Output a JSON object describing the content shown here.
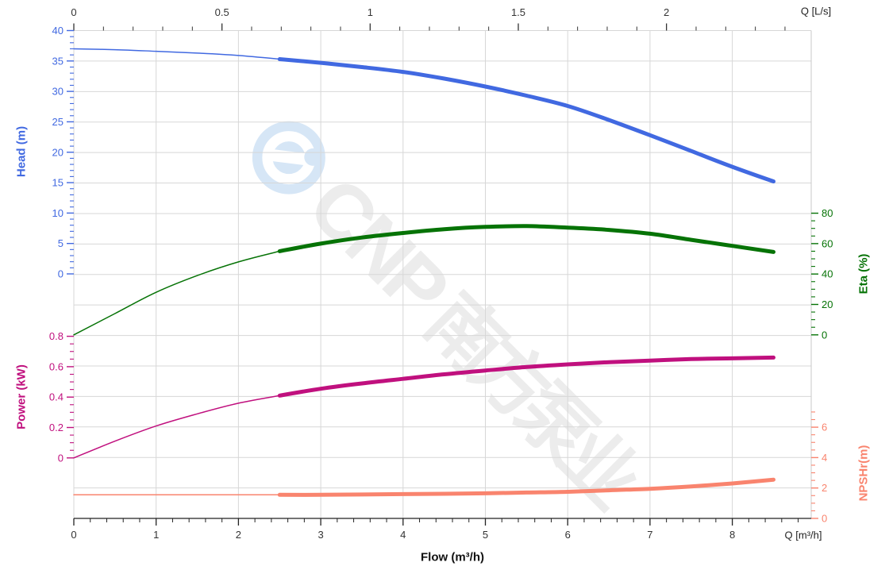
{
  "watermark": {
    "brand_latin": "CNP",
    "brand_cjk": "南方泵业",
    "logo_color": "#d6e6f6"
  },
  "chart_data": {
    "type": "line",
    "title": "",
    "x_bottom": {
      "axis_title": "Flow (m³/h)",
      "unit_label": "Q [m³/h]",
      "ticks": [
        0,
        1,
        2,
        3,
        4,
        5,
        6,
        7,
        8
      ],
      "minor_step": 0.2,
      "range": [
        0,
        8.96
      ],
      "color": "#333333"
    },
    "x_top": {
      "unit_label": "Q [L/s]",
      "ticks": [
        0,
        0.5,
        1,
        1.5,
        2
      ],
      "minor_step": 0.1,
      "range": [
        0,
        2.489
      ],
      "color": "#333333"
    },
    "y_axes": [
      {
        "id": "head",
        "title": "Head (m)",
        "side": "left",
        "color": "#4169E1",
        "ticks": [
          0,
          5,
          10,
          15,
          20,
          25,
          30,
          35,
          40
        ],
        "minor_step": 1,
        "minor_max": 40,
        "range": [
          0,
          40
        ]
      },
      {
        "id": "eta",
        "title": "Eta (%)",
        "side": "right",
        "color": "#067306",
        "ticks": [
          0,
          20,
          40,
          60,
          80
        ],
        "minor_step": 5,
        "minor_max": 80,
        "range": [
          0,
          80
        ]
      },
      {
        "id": "power",
        "title": "Power (kW)",
        "side": "left",
        "color": "#C0107E",
        "ticks": [
          0,
          0.2,
          0.4,
          0.6,
          0.8
        ],
        "minor_step": 0.05,
        "minor_max": 0.8,
        "range": [
          0,
          0.8
        ]
      },
      {
        "id": "npshr",
        "title": "NPSHr(m)",
        "side": "right",
        "color": "#F9846E",
        "ticks": [
          0,
          2,
          4,
          6
        ],
        "minor_step": 0.5,
        "minor_max": 7,
        "range": [
          0,
          7
        ]
      }
    ],
    "grid": true,
    "legend": "none",
    "duty_range_note": "curves drawn thin from 0 to 2.5 m³/h, thick (preferred duty range) from 2.5 to 8.5 m³/h",
    "series": [
      {
        "name": "Head",
        "axis": "head",
        "color": "#4169E1",
        "duty_start": 2.5,
        "points": [
          [
            0,
            37.0
          ],
          [
            0.5,
            36.85
          ],
          [
            1,
            36.6
          ],
          [
            1.5,
            36.3
          ],
          [
            2,
            35.9
          ],
          [
            2.5,
            35.3
          ],
          [
            3,
            34.7
          ],
          [
            3.5,
            34.0
          ],
          [
            4,
            33.2
          ],
          [
            4.5,
            32.1
          ],
          [
            5,
            30.8
          ],
          [
            5.5,
            29.3
          ],
          [
            6,
            27.6
          ],
          [
            6.5,
            25.3
          ],
          [
            7,
            22.8
          ],
          [
            7.5,
            20.2
          ],
          [
            8,
            17.6
          ],
          [
            8.5,
            15.2
          ]
        ]
      },
      {
        "name": "Eta",
        "axis": "eta",
        "color": "#067306",
        "duty_start": 2.5,
        "points": [
          [
            0,
            0
          ],
          [
            0.5,
            14
          ],
          [
            1,
            28
          ],
          [
            1.5,
            39
          ],
          [
            2,
            48
          ],
          [
            2.5,
            55
          ],
          [
            3,
            60
          ],
          [
            3.5,
            64
          ],
          [
            4,
            67
          ],
          [
            4.5,
            69.5
          ],
          [
            5,
            71
          ],
          [
            5.5,
            71.5
          ],
          [
            6,
            70.5
          ],
          [
            6.5,
            69
          ],
          [
            7,
            66.5
          ],
          [
            7.5,
            62.5
          ],
          [
            8,
            58.5
          ],
          [
            8.5,
            54.5
          ]
        ]
      },
      {
        "name": "Power",
        "axis": "power",
        "color": "#C0107E",
        "duty_start": 2.5,
        "points": [
          [
            0,
            0.0
          ],
          [
            0.5,
            0.11
          ],
          [
            1,
            0.21
          ],
          [
            1.5,
            0.29
          ],
          [
            2,
            0.36
          ],
          [
            2.5,
            0.41
          ],
          [
            3,
            0.455
          ],
          [
            3.5,
            0.49
          ],
          [
            4,
            0.52
          ],
          [
            4.5,
            0.55
          ],
          [
            5,
            0.575
          ],
          [
            5.5,
            0.598
          ],
          [
            6,
            0.615
          ],
          [
            6.5,
            0.63
          ],
          [
            7,
            0.64
          ],
          [
            7.5,
            0.65
          ],
          [
            8,
            0.655
          ],
          [
            8.5,
            0.66
          ]
        ]
      },
      {
        "name": "NPSHr",
        "axis": "npshr",
        "color": "#F9846E",
        "duty_start": 2.5,
        "points": [
          [
            0,
            1.55
          ],
          [
            0.5,
            1.55
          ],
          [
            1,
            1.55
          ],
          [
            1.5,
            1.55
          ],
          [
            2,
            1.55
          ],
          [
            2.5,
            1.55
          ],
          [
            3,
            1.55
          ],
          [
            3.5,
            1.57
          ],
          [
            4,
            1.6
          ],
          [
            4.5,
            1.62
          ],
          [
            5,
            1.65
          ],
          [
            5.5,
            1.7
          ],
          [
            6,
            1.75
          ],
          [
            6.5,
            1.85
          ],
          [
            7,
            1.95
          ],
          [
            7.5,
            2.1
          ],
          [
            8,
            2.3
          ],
          [
            8.5,
            2.55
          ]
        ]
      }
    ]
  }
}
